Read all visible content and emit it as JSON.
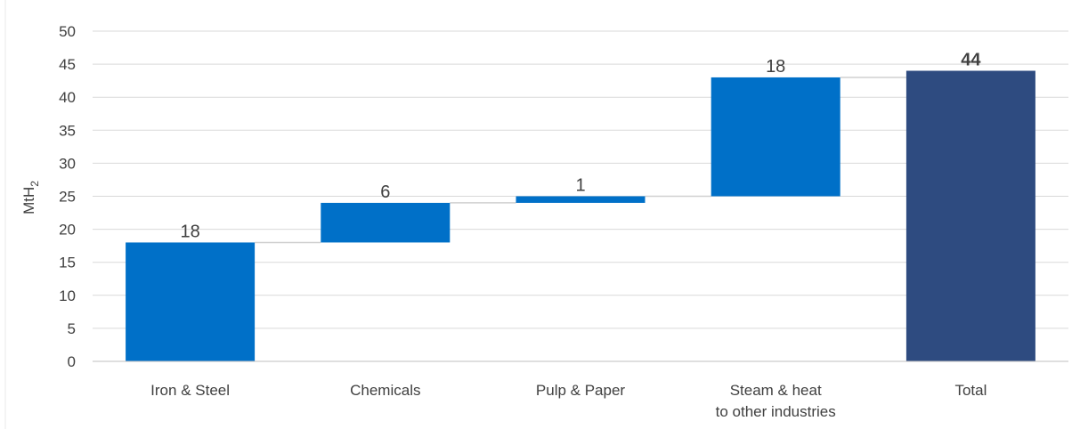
{
  "chart_data": {
    "type": "bar",
    "subtype": "waterfall",
    "ylabel": "MtH",
    "ylabel_subscript": "2",
    "ylim": [
      0,
      50
    ],
    "ytick_step": 5,
    "grid": true,
    "categories": [
      [
        "Iron & Steel"
      ],
      [
        "Chemicals"
      ],
      [
        "Pulp & Paper"
      ],
      [
        "Steam & heat",
        "to other industries"
      ],
      [
        "Total"
      ]
    ],
    "values": [
      18,
      6,
      1,
      18,
      44
    ],
    "labels": [
      "18",
      "6",
      "1",
      "18",
      "44"
    ],
    "is_total": [
      false,
      false,
      false,
      false,
      true
    ],
    "colors": {
      "increment": "#0070C8",
      "total": "#2E4B80",
      "grid": "#D9D9D9",
      "connector": "#D0D0D0",
      "axis": "#BFBFBF"
    }
  }
}
